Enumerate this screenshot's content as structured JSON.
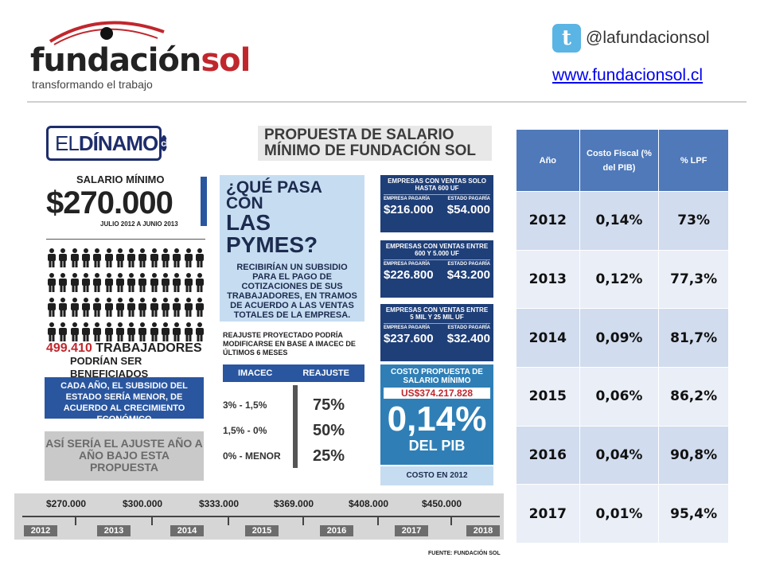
{
  "header": {
    "logo_word_a": "fundación",
    "logo_word_b": "sol",
    "tagline": "transformando el trabajo",
    "twitter_handle": "@lafundacionsol",
    "website": "www.fundacionsol.cl"
  },
  "infographic": {
    "dinamo_pre": "EL",
    "dinamo_bold": "DÍNAMO",
    "dinamo_mark": "cl",
    "title": "PROPUESTA DE SALARIO MÍNIMO DE FUNDACIÓN SOL",
    "salario_label": "SALARIO MÍNIMO",
    "salario_value": "$270.000",
    "salario_period": "JULIO 2012 A JUNIO 2013",
    "workers_number": "499.410",
    "workers_label": "TRABAJADORES",
    "workers_sub": "PODRÍAN SER BENEFICIADOS",
    "subsidio_note": "CADA AÑO, EL SUBSIDIO DEL ESTADO SERÍA MENOR, DE ACUERDO AL CRECIMIENTO ECONÓMICO",
    "ajuste_note": "ASÍ SERÍA EL AJUSTE AÑO A AÑO BAJO ESTA PROPUESTA",
    "pymes_q1": "¿QUÉ PASA CON",
    "pymes_q2": "LAS PYMES?",
    "pymes_desc": "RECIBIRÍAN UN SUBSIDIO PARA EL PAGO DE COTIZACIONES DE SUS TRABAJADORES, EN TRAMOS DE ACUERDO A LAS VENTAS TOTALES DE LA EMPRESA.",
    "reajuste_note": "REAJUSTE PROYECTADO PODRÍA MODIFICARSE EN BASE A IMACEC DE ÚLTIMOS 6 MESES",
    "reajuste_head_a": "IMACEC",
    "reajuste_head_b": "REAJUSTE",
    "reajuste_rows": [
      {
        "range": "3% - 1,5%",
        "pct": "75%"
      },
      {
        "range": "1,5% - 0%",
        "pct": "50%"
      },
      {
        "range": "0% - MENOR",
        "pct": "25%"
      }
    ],
    "empresa_pagaria": "EMPRESA PAGARÍA",
    "estado_pagaria": "ESTADO PAGARÍA",
    "empresas": [
      {
        "title": "EMPRESAS CON VENTAS SOLO HASTA 600 UF",
        "empresa": "$216.000",
        "estado": "$54.000"
      },
      {
        "title": "EMPRESAS CON VENTAS ENTRE 600 Y 5.000 UF",
        "empresa": "$226.800",
        "estado": "$43.200"
      },
      {
        "title": "EMPRESAS CON VENTAS ENTRE 5 MIL Y 25 MIL UF",
        "empresa": "$237.600",
        "estado": "$32.400"
      }
    ],
    "costo_title": "COSTO PROPUESTA DE SALARIO MÍNIMO",
    "costo_usd": "US$374.217.828",
    "costo_pct": "0,14%",
    "costo_pib": "DEL PIB",
    "costo_2012": "COSTO EN 2012",
    "timeline_amounts": [
      "$270.000",
      "$300.000",
      "$333.000",
      "$369.000",
      "$408.000",
      "$450.000"
    ],
    "timeline_years": [
      "2012",
      "2013",
      "2014",
      "2015",
      "2016",
      "2017",
      "2018"
    ],
    "fuente": "FUENTE: FUNDACIÓN SOL"
  },
  "table": {
    "headers": [
      "Año",
      "Costo Fiscal (% del PIB)",
      "% LPF"
    ],
    "rows": [
      [
        "2012",
        "0,14%",
        "73%"
      ],
      [
        "2013",
        "0,12%",
        "77,3%"
      ],
      [
        "2014",
        "0,09%",
        "81,7%"
      ],
      [
        "2015",
        "0,06%",
        "86,2%"
      ],
      [
        "2016",
        "0,04%",
        "90,8%"
      ],
      [
        "2017",
        "0,01%",
        "95,4%"
      ]
    ]
  },
  "colors": {
    "brand_red": "#c0272d",
    "blue": "#2a56a0",
    "table_header": "#4f79b9"
  }
}
